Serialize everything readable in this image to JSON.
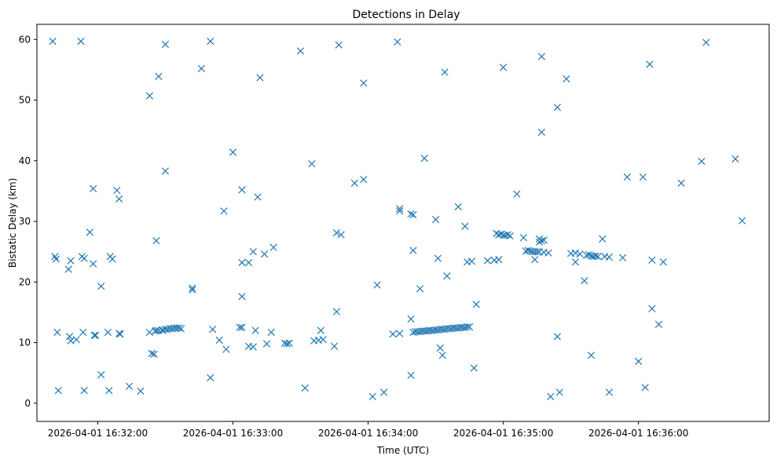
{
  "chart_data": {
    "type": "scatter",
    "title": "Detections in Delay",
    "xlabel": "Time (UTC)",
    "ylabel": "Bistatic Delay (km)",
    "marker": "x",
    "color": "#1f77b4",
    "grid": false,
    "x_unit": "seconds after 2026-04-01 16:32:00",
    "xlim": [
      -27,
      298
    ],
    "ylim": [
      -3,
      62.5
    ],
    "x_ticks": [
      0,
      60,
      120,
      180,
      240
    ],
    "x_tick_labels": [
      "2026-04-01 16:32:00",
      "2026-04-01 16:33:00",
      "2026-04-01 16:34:00",
      "2026-04-01 16:35:00",
      "2026-04-01 16:36:00"
    ],
    "y_ticks": [
      0,
      10,
      20,
      30,
      40,
      50,
      60
    ],
    "y_tick_labels": [
      "0",
      "10",
      "20",
      "30",
      "40",
      "50",
      "60"
    ],
    "points": [
      [
        -12,
        23.5
      ],
      [
        -12,
        10.3
      ],
      [
        -9.5,
        10.5
      ],
      [
        -7.5,
        59.7
      ],
      [
        8.5,
        35.1
      ],
      [
        5.5,
        24.2
      ],
      [
        6.5,
        23.8
      ],
      [
        4.5,
        11.7
      ],
      [
        5,
        2.1
      ],
      [
        -7,
        24.2
      ],
      [
        -6,
        23.9
      ],
      [
        -6.5,
        11.7
      ],
      [
        -6,
        2.1
      ],
      [
        -20,
        59.7
      ],
      [
        -19,
        24.2
      ],
      [
        -18.5,
        23.8
      ],
      [
        -18,
        11.7
      ],
      [
        -17.5,
        2.1
      ],
      [
        -13,
        22.1
      ],
      [
        -12.5,
        11
      ],
      [
        -3.5,
        28.2
      ],
      [
        -2,
        35.4
      ],
      [
        -2,
        23
      ],
      [
        -1.5,
        11.2
      ],
      [
        -1,
        11.2
      ],
      [
        1.5,
        19.3
      ],
      [
        1.5,
        4.7
      ],
      [
        9.5,
        33.7
      ],
      [
        9.5,
        11.5
      ],
      [
        10,
        11.4
      ],
      [
        14,
        2.8
      ],
      [
        19,
        2
      ],
      [
        23,
        50.7
      ],
      [
        27,
        53.9
      ],
      [
        26,
        26.8
      ],
      [
        30,
        59.2
      ],
      [
        30,
        38.3
      ],
      [
        23,
        11.7
      ],
      [
        24,
        8.2
      ],
      [
        25,
        8.1
      ],
      [
        25.5,
        11.9
      ],
      [
        27,
        12
      ],
      [
        28.5,
        12.1
      ],
      [
        30,
        12.2
      ],
      [
        31,
        12.2
      ],
      [
        32,
        12.3
      ],
      [
        33,
        12.3
      ],
      [
        34,
        12.4
      ],
      [
        35,
        12.4
      ],
      [
        36,
        12.4
      ],
      [
        37,
        12.3
      ],
      [
        26,
        12
      ],
      [
        29,
        12
      ],
      [
        42,
        19
      ],
      [
        42,
        18.7
      ],
      [
        46,
        55.2
      ],
      [
        50,
        59.7
      ],
      [
        50,
        4.2
      ],
      [
        51,
        12.2
      ],
      [
        54,
        10.4
      ],
      [
        57,
        8.9
      ],
      [
        56,
        31.7
      ],
      [
        60,
        41.4
      ],
      [
        63,
        12.5
      ],
      [
        64,
        12.5
      ],
      [
        64,
        35.2
      ],
      [
        64,
        23.2
      ],
      [
        64,
        17.6
      ],
      [
        67,
        23.2
      ],
      [
        67,
        9.4
      ],
      [
        69,
        9.3
      ],
      [
        69,
        25
      ],
      [
        70,
        12
      ],
      [
        71,
        34
      ],
      [
        72,
        53.7
      ],
      [
        74,
        24.6
      ],
      [
        75,
        9.8
      ],
      [
        77,
        11.7
      ],
      [
        78,
        25.7
      ],
      [
        83,
        9.9
      ],
      [
        84,
        9.8
      ],
      [
        85,
        9.9
      ],
      [
        90,
        58.1
      ],
      [
        92,
        2.5
      ],
      [
        95,
        39.5
      ],
      [
        96,
        10.3
      ],
      [
        98,
        10.4
      ],
      [
        99,
        12
      ],
      [
        100,
        10.5
      ],
      [
        105,
        9.4
      ],
      [
        106,
        15.1
      ],
      [
        106,
        28.1
      ],
      [
        107,
        59.1
      ],
      [
        108,
        27.8
      ],
      [
        114,
        36.3
      ],
      [
        118,
        36.9
      ],
      [
        118,
        52.8
      ],
      [
        122,
        1.1
      ],
      [
        124,
        19.5
      ],
      [
        127,
        1.8
      ],
      [
        131,
        11.4
      ],
      [
        134,
        11.5
      ],
      [
        139,
        13.9
      ],
      [
        139,
        4.6
      ],
      [
        140,
        11.7
      ],
      [
        141,
        11.8
      ],
      [
        142,
        11.8
      ],
      [
        143,
        11.8
      ],
      [
        144,
        11.9
      ],
      [
        145,
        11.9
      ],
      [
        146,
        11.9
      ],
      [
        147,
        12
      ],
      [
        148,
        12
      ],
      [
        149,
        12
      ],
      [
        150,
        12.1
      ],
      [
        151,
        12.1
      ],
      [
        152,
        12.2
      ],
      [
        153,
        12.2
      ],
      [
        154,
        12.2
      ],
      [
        155,
        12.3
      ],
      [
        156,
        12.3
      ],
      [
        157,
        12.3
      ],
      [
        158,
        12.4
      ],
      [
        159,
        12.4
      ],
      [
        160,
        12.4
      ],
      [
        161,
        12.5
      ],
      [
        162,
        12.5
      ],
      [
        163,
        12.5
      ],
      [
        164,
        12.6
      ],
      [
        165,
        12.6
      ],
      [
        133,
        59.6
      ],
      [
        134,
        32.1
      ],
      [
        134,
        31.7
      ],
      [
        139,
        31.2
      ],
      [
        140,
        31.1
      ],
      [
        140,
        25.2
      ],
      [
        143,
        18.9
      ],
      [
        145,
        40.4
      ],
      [
        150,
        30.3
      ],
      [
        151,
        23.9
      ],
      [
        152,
        9.1
      ],
      [
        153,
        7.9
      ],
      [
        154,
        54.6
      ],
      [
        155,
        21
      ],
      [
        160,
        32.4
      ],
      [
        163,
        29.2
      ],
      [
        164,
        23.3
      ],
      [
        166,
        23.4
      ],
      [
        168,
        16.3
      ],
      [
        167,
        5.8
      ],
      [
        173,
        23.5
      ],
      [
        176,
        23.6
      ],
      [
        177,
        28
      ],
      [
        178,
        23.7
      ],
      [
        178,
        27.8
      ],
      [
        179,
        27.9
      ],
      [
        180,
        27.7
      ],
      [
        181,
        27.7
      ],
      [
        182,
        27.8
      ],
      [
        183,
        27.6
      ],
      [
        180,
        55.4
      ],
      [
        186,
        34.5
      ],
      [
        189,
        27.3
      ],
      [
        190,
        25.1
      ],
      [
        191,
        25.2
      ],
      [
        192,
        25.1
      ],
      [
        193,
        25
      ],
      [
        194,
        25
      ],
      [
        195,
        25
      ],
      [
        196,
        25
      ],
      [
        194,
        23.7
      ],
      [
        196,
        26.6
      ],
      [
        196,
        27.1
      ],
      [
        197,
        26.8
      ],
      [
        198,
        26.9
      ],
      [
        197,
        57.2
      ],
      [
        197,
        44.7
      ],
      [
        198,
        24.9
      ],
      [
        200,
        24.8
      ],
      [
        201,
        1.1
      ],
      [
        204,
        48.8
      ],
      [
        204,
        11
      ],
      [
        205,
        1.8
      ],
      [
        208,
        53.5
      ],
      [
        210,
        24.7
      ],
      [
        212,
        24.8
      ],
      [
        212,
        23.3
      ],
      [
        214,
        24.6
      ],
      [
        216,
        20.2
      ],
      [
        217,
        24.4
      ],
      [
        218,
        24.5
      ],
      [
        219,
        24.3
      ],
      [
        220,
        24.2
      ],
      [
        221,
        24.3
      ],
      [
        222,
        24.2
      ],
      [
        224,
        27.1
      ],
      [
        225,
        24.2
      ],
      [
        227,
        24.1
      ],
      [
        227,
        1.8
      ],
      [
        219,
        7.9
      ],
      [
        233,
        24
      ],
      [
        235,
        37.3
      ],
      [
        240,
        6.9
      ],
      [
        243,
        2.6
      ],
      [
        242,
        37.3
      ],
      [
        245,
        55.9
      ],
      [
        246,
        15.6
      ],
      [
        246,
        23.6
      ],
      [
        249,
        13
      ],
      [
        251,
        23.3
      ],
      [
        259,
        36.3
      ],
      [
        268,
        39.9
      ],
      [
        270,
        59.5
      ],
      [
        283,
        40.3
      ],
      [
        286,
        30.1
      ]
    ]
  }
}
